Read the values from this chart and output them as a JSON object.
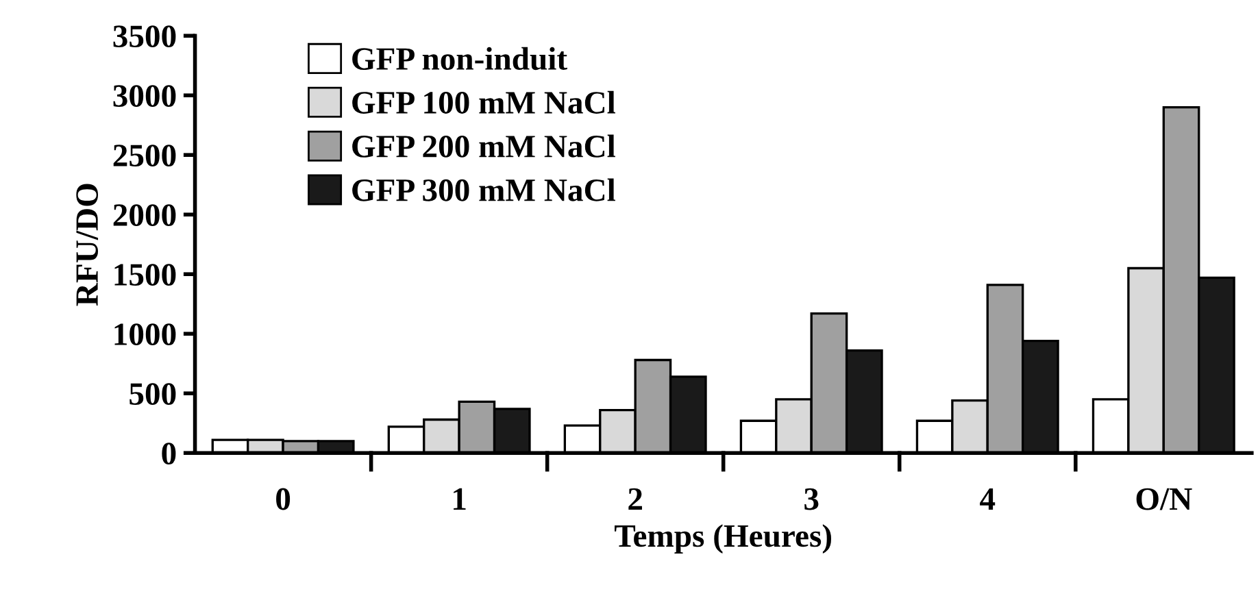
{
  "chart_data": {
    "type": "bar",
    "xlabel": "Temps (Heures)",
    "ylabel": "RFU/DO",
    "categories": [
      "0",
      "1",
      "2",
      "3",
      "4",
      "O/N"
    ],
    "series": [
      {
        "name": "GFP non-induit",
        "color": "#ffffff",
        "values": [
          110,
          220,
          230,
          270,
          270,
          450
        ]
      },
      {
        "name": "GFP 100 mM NaCl",
        "color": "#d9d9d9",
        "values": [
          110,
          280,
          360,
          450,
          440,
          1550
        ]
      },
      {
        "name": "GFP 200 mM NaCl",
        "color": "#a0a0a0",
        "values": [
          100,
          430,
          780,
          1170,
          1410,
          2900
        ]
      },
      {
        "name": "GFP 300 mM NaCl",
        "color": "#1a1a1a",
        "values": [
          100,
          370,
          640,
          860,
          940,
          1470
        ]
      }
    ],
    "ylim": [
      0,
      3500
    ],
    "yticks": [
      0,
      500,
      1000,
      1500,
      2000,
      2500,
      3000,
      3500
    ],
    "grid": false,
    "legend": "top left"
  }
}
